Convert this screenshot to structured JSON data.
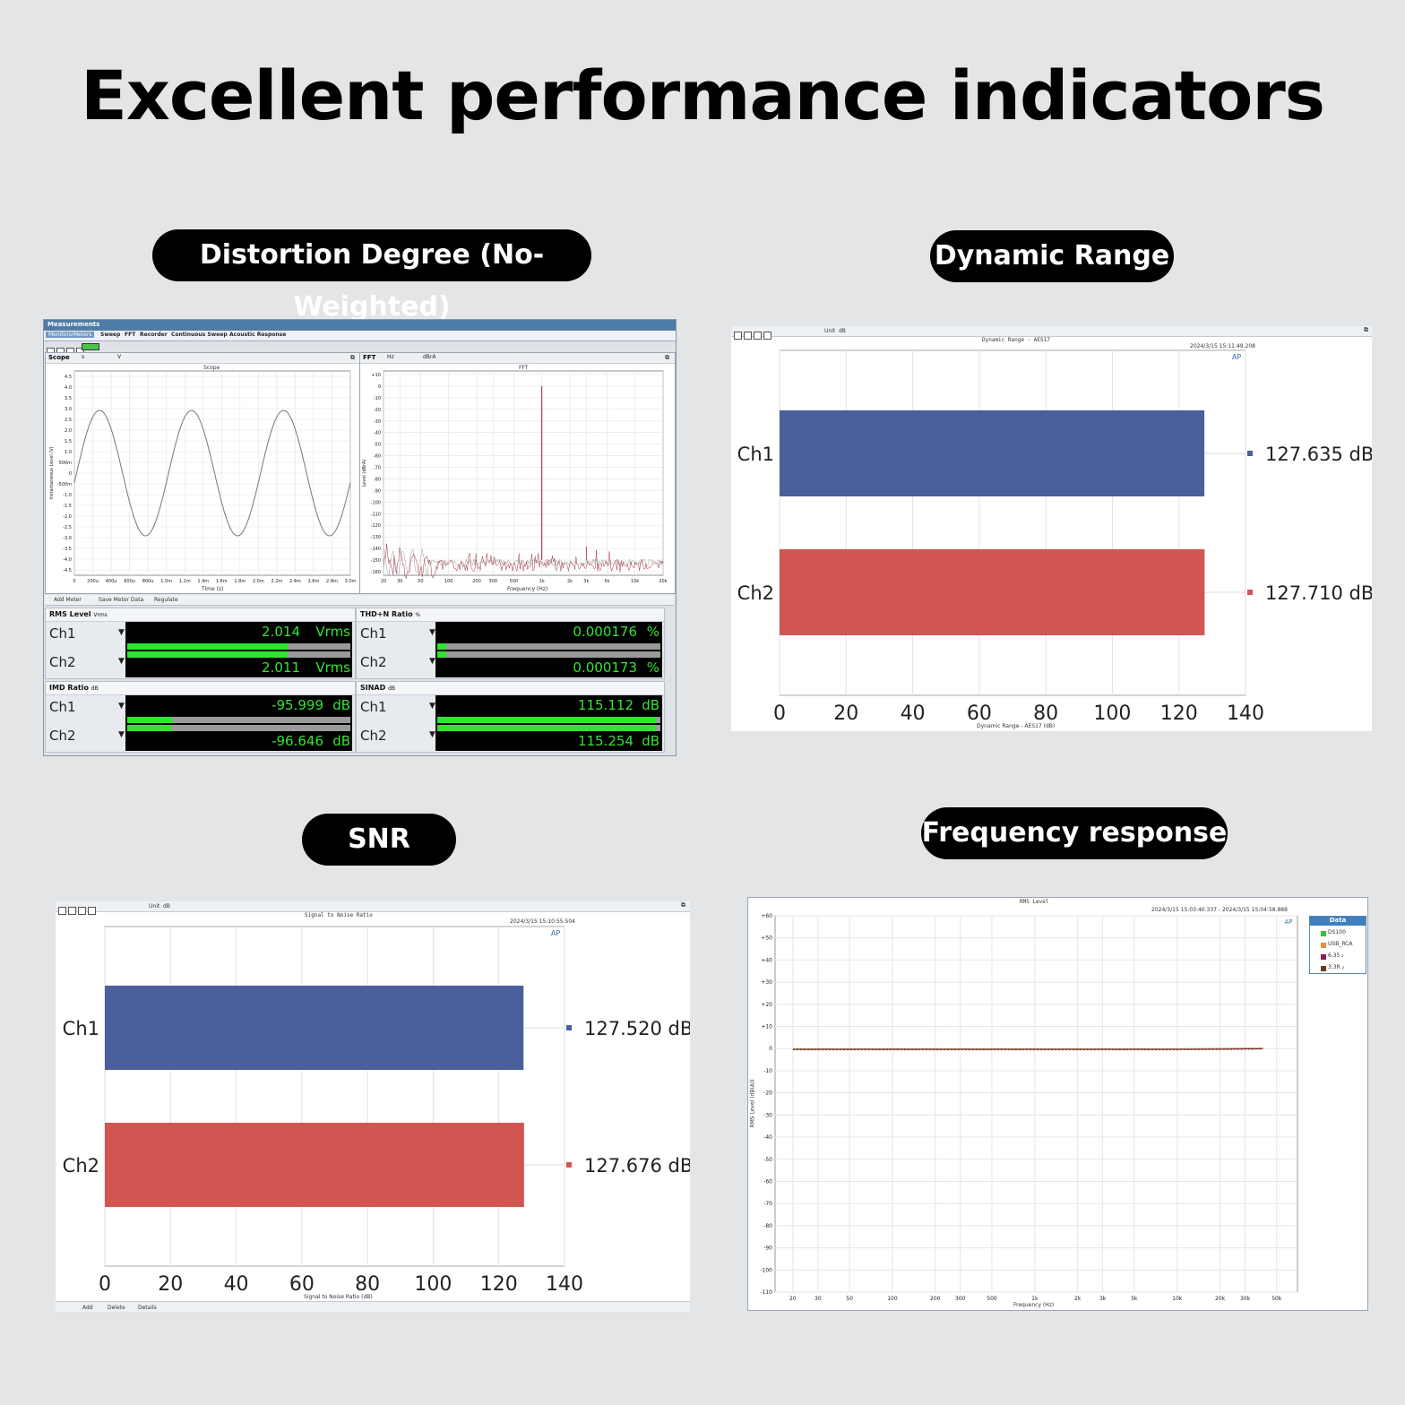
{
  "headline": "Excellent performance indicators",
  "sections": {
    "distortion": "Distortion Degree (No-Weighted)",
    "dynamic_range": "Dynamic Range",
    "snr": "SNR",
    "freq_response": "Frequency response"
  },
  "measurements": {
    "title": "Measurements",
    "tabs": [
      "Monitors/Meters",
      "Sweep",
      "FFT",
      "Recorder",
      "Continuous Sweep",
      "Acoustic Response"
    ],
    "scope": {
      "label": "Scope",
      "x_unit": "s",
      "y_unit": "V",
      "title": "Scope",
      "xlabel": "Time (s)",
      "ylabel": "Instantaneous Level (V)",
      "yticks": [
        "4.5",
        "4.0",
        "3.5",
        "3.0",
        "2.5",
        "2.0",
        "1.5",
        "1.0",
        "500m",
        "0",
        "-500m",
        "-1.0",
        "-1.5",
        "-2.0",
        "-2.5",
        "-3.0",
        "-3.5",
        "-4.0",
        "-4.5"
      ],
      "xticks": [
        "0",
        "200u",
        "400u",
        "600u",
        "800u",
        "1.0m",
        "1.2m",
        "1.4m",
        "1.6m",
        "1.8m",
        "2.0m",
        "2.2m",
        "2.4m",
        "2.6m",
        "2.8m",
        "3.0m"
      ]
    },
    "fft": {
      "label": "FFT",
      "x_unit": "Hz",
      "y_unit": "dBrA",
      "title": "FFT",
      "xlabel": "Frequency (Hz)",
      "ylabel": "Level (dBrA)",
      "yticks": [
        "+10",
        "0",
        "-10",
        "-20",
        "-30",
        "-40",
        "-50",
        "-60",
        "-70",
        "-80",
        "-90",
        "-100",
        "-110",
        "-120",
        "-130",
        "-140",
        "-150",
        "-160"
      ],
      "xticks": [
        "20",
        "30",
        "50",
        "100",
        "200",
        "300",
        "500",
        "1k",
        "2k",
        "3k",
        "5k",
        "10k",
        "20k"
      ]
    },
    "meter_toolbar": [
      "Add Meter",
      "Save Meter Data",
      "Regulate"
    ],
    "meters": {
      "rms": {
        "title": "RMS Level",
        "unit": "Vrms",
        "ch1": "2.014",
        "ch2": "2.011",
        "fill": [
          0.72,
          0.72
        ]
      },
      "thdn": {
        "title": "THD+N Ratio",
        "unit": "%",
        "ch1": "0.000176",
        "ch2": "0.000173",
        "fill": [
          0.04,
          0.04
        ]
      },
      "imd": {
        "title": "IMD Ratio",
        "unit": "dB",
        "ch1": "-95.999",
        "ch2": "-96.646",
        "fill": [
          0.2,
          0.2
        ]
      },
      "sinad": {
        "title": "SINAD",
        "unit": "dB",
        "ch1": "115.112",
        "ch2": "115.254",
        "fill": [
          0.98,
          0.98
        ]
      }
    },
    "ch_labels": [
      "Ch1",
      "Ch2"
    ]
  },
  "dr_panel": {
    "unit_label": "Unit",
    "unit": "dB",
    "title": "Dynamic Range - AES17",
    "timestamp": "2024/3/15 15:11:49.208",
    "xlabel": "Dynamic Range - AES17 (dB)",
    "value_labels": [
      "127.635 dB",
      "127.710 dB"
    ]
  },
  "snr_panel": {
    "unit_label": "Unit",
    "unit": "dB",
    "title": "Signal to Noise Ratio",
    "timestamp": "2024/3/15 15:10:55.504",
    "xlabel": "Signal to Noise Ratio (dB)",
    "value_labels": [
      "127.520 dB",
      "127.676 dB"
    ],
    "footer": [
      "Add",
      "Delete",
      "Details"
    ]
  },
  "fr_panel": {
    "title": "RMS Level",
    "timestamp": "2024/3/15 15:03:40.337  -  2024/3/15 15:04:58.888",
    "xlabel": "Frequency (Hz)",
    "ylabel": "RMS Level (dB(A))",
    "legend_title": "Data",
    "legend": [
      "DS100",
      "USB_RCA",
      "6.35 ₂",
      "3.3R ₂"
    ],
    "legend_colors": [
      "#3ac43a",
      "#f08a3c",
      "#8a1f5a",
      "#6b3b1b"
    ]
  },
  "chart_data": [
    {
      "type": "bar",
      "orientation": "horizontal",
      "title": "Dynamic Range - AES17",
      "xlabel": "Dynamic Range - AES17 (dB)",
      "categories": [
        "Ch1",
        "Ch2"
      ],
      "values": [
        127.635,
        127.71
      ],
      "colors": [
        "#4a5f9b",
        "#d25552"
      ],
      "xlim": [
        0,
        140
      ],
      "xticks": [
        0,
        20,
        40,
        60,
        80,
        100,
        120,
        140
      ],
      "grid": true
    },
    {
      "type": "bar",
      "orientation": "horizontal",
      "title": "Signal to Noise Ratio",
      "xlabel": "Signal to Noise Ratio (dB)",
      "categories": [
        "Ch1",
        "Ch2"
      ],
      "values": [
        127.52,
        127.676
      ],
      "colors": [
        "#4a5f9b",
        "#d25552"
      ],
      "xlim": [
        0,
        140
      ],
      "xticks": [
        0,
        20,
        40,
        60,
        80,
        100,
        120,
        140
      ],
      "grid": true
    },
    {
      "type": "line",
      "title": "RMS Level",
      "xlabel": "Frequency (Hz)",
      "ylabel": "RMS Level (dB(A))",
      "xscale": "log",
      "xlim": [
        15,
        70000
      ],
      "ylim": [
        -110,
        60
      ],
      "xticks": [
        "20",
        "30",
        "50",
        "100",
        "200",
        "300",
        "500",
        "1k",
        "2k",
        "3k",
        "5k",
        "10k",
        "20k",
        "30k",
        "50k"
      ],
      "yticks": [
        "+60",
        "+50",
        "+40",
        "+30",
        "+20",
        "+10",
        "0",
        "-10",
        "-20",
        "-30",
        "-40",
        "-50",
        "-60",
        "-70",
        "-80",
        "-90",
        "-100",
        "-110"
      ],
      "series": [
        {
          "name": "DS100",
          "color": "#3ac43a",
          "x": [
            20,
            100,
            1000,
            10000,
            20000,
            40000
          ],
          "y": [
            -0.3,
            -0.3,
            -0.3,
            -0.3,
            -0.2,
            0.0
          ]
        },
        {
          "name": "USB_RCA",
          "color": "#f08a3c",
          "x": [
            20,
            100,
            1000,
            10000,
            20000,
            40000
          ],
          "y": [
            -0.3,
            -0.3,
            -0.3,
            -0.3,
            -0.2,
            0.0
          ]
        },
        {
          "name": "6.35 ₂",
          "color": "#8a1f5a",
          "x": [
            20,
            100,
            1000,
            10000,
            20000,
            40000
          ],
          "y": [
            -0.3,
            -0.3,
            -0.3,
            -0.3,
            -0.2,
            0.0
          ]
        },
        {
          "name": "3.3R ₂",
          "color": "#6b3b1b",
          "x": [
            20,
            100,
            1000,
            10000,
            20000,
            40000
          ],
          "y": [
            -0.3,
            -0.3,
            -0.3,
            -0.3,
            -0.2,
            0.0
          ]
        }
      ],
      "legend": "top-right",
      "grid": true
    }
  ]
}
